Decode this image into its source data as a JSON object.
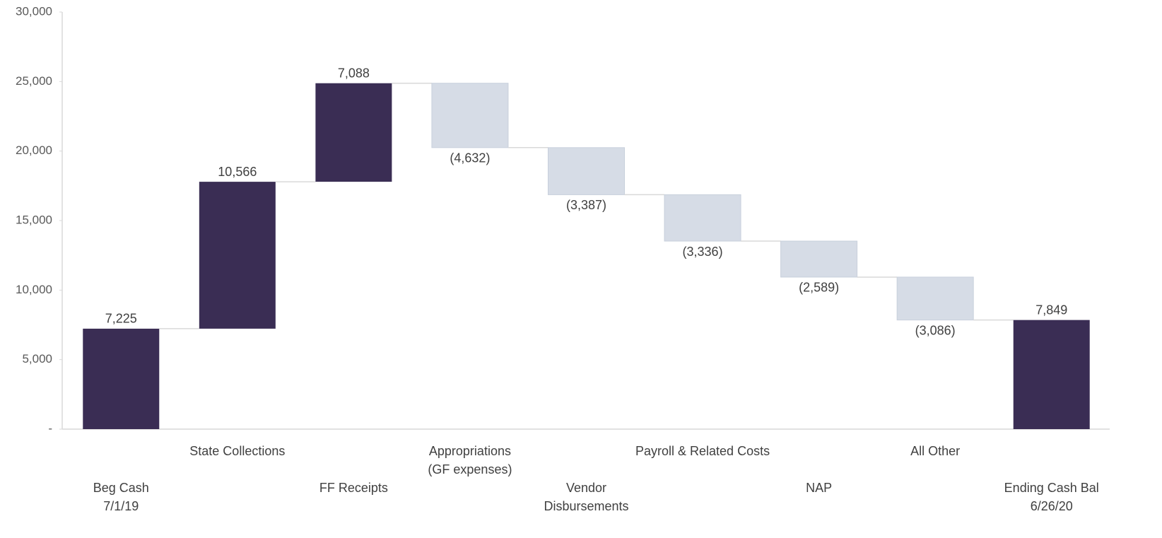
{
  "chart_data": {
    "type": "waterfall",
    "categories": [
      "Beg Cash\n7/1/19",
      "State Collections",
      "FF Receipts",
      "Appropriations\n(GF expenses)",
      "Vendor\nDisbursements",
      "Payroll & Related Costs",
      "NAP",
      "All Other",
      "Ending Cash Bal\n6/26/20"
    ],
    "values": [
      7225,
      10566,
      7088,
      -4632,
      -3387,
      -3336,
      -2589,
      -3086,
      7849
    ],
    "value_labels": [
      "7,225",
      "10,566",
      "7,088",
      "(4,632)",
      "(3,387)",
      "(3,336)",
      "(2,589)",
      "(3,086)",
      "7,849"
    ],
    "measure": [
      "absolute",
      "relative",
      "relative",
      "relative",
      "relative",
      "relative",
      "relative",
      "relative",
      "total"
    ],
    "increase_color": "#3a2d54",
    "decrease_color": "#d6dce6",
    "total_color": "#3a2d54",
    "ylim": [
      0,
      30000
    ],
    "yticks": [
      {
        "value": 0,
        "label": "-"
      },
      {
        "value": 5000,
        "label": "5,000"
      },
      {
        "value": 10000,
        "label": "10,000"
      },
      {
        "value": 15000,
        "label": "15,000"
      },
      {
        "value": 20000,
        "label": "20,000"
      },
      {
        "value": 25000,
        "label": "25,000"
      },
      {
        "value": 30000,
        "label": "30,000"
      }
    ],
    "grid": false
  }
}
